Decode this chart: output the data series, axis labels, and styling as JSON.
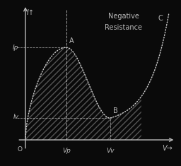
{
  "title_line1": "Negative",
  "title_line2": "Resistance",
  "xlabel": "V→",
  "ylabel": "I↑",
  "label_Ip": "Ip",
  "label_Iv": "Iv",
  "label_A": "A",
  "label_B": "B",
  "label_C": "C",
  "label_O": "O",
  "label_Vp": "Vp",
  "label_Vv": "Vv",
  "bg_color": "#0a0a0a",
  "line_color": "#cccccc",
  "hatch_color": "#555555",
  "text_color": "#bbbbbb",
  "Vp": 0.3,
  "Vv": 0.62,
  "Ip": 0.72,
  "Iv": 0.17,
  "xlim": [
    -0.08,
    1.1
  ],
  "ylim": [
    -0.1,
    1.05
  ]
}
